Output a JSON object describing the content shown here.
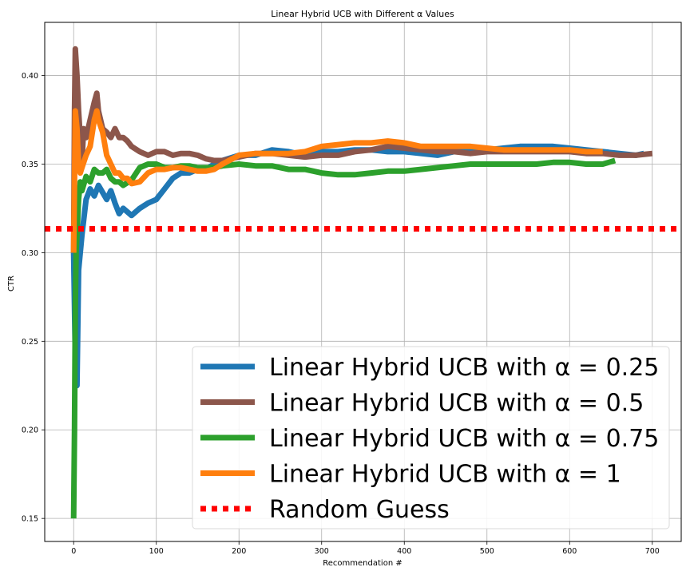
{
  "chart_data": {
    "type": "line",
    "title": "Linear Hybrid UCB with Different α Values",
    "xlabel": "Recommendation #",
    "ylabel": "CTR",
    "xlim": [
      -35,
      735
    ],
    "ylim": [
      0.137,
      0.43
    ],
    "xticks": [
      0,
      100,
      200,
      300,
      400,
      500,
      600,
      700
    ],
    "yticks": [
      0.15,
      0.2,
      0.25,
      0.3,
      0.35,
      0.4
    ],
    "ytick_labels": [
      "0.15",
      "0.20",
      "0.25",
      "0.30",
      "0.35",
      "0.40"
    ],
    "grid": true,
    "legend_position": "lower right",
    "series": [
      {
        "name": "Linear Hybrid UCB with α = 0.25",
        "color": "#1f77b4",
        "points": [
          [
            0,
            0.3
          ],
          [
            2,
            0.24
          ],
          [
            4,
            0.225
          ],
          [
            6,
            0.29
          ],
          [
            10,
            0.31
          ],
          [
            15,
            0.33
          ],
          [
            20,
            0.336
          ],
          [
            25,
            0.332
          ],
          [
            30,
            0.338
          ],
          [
            35,
            0.334
          ],
          [
            40,
            0.33
          ],
          [
            45,
            0.335
          ],
          [
            50,
            0.328
          ],
          [
            55,
            0.322
          ],
          [
            60,
            0.325
          ],
          [
            70,
            0.321
          ],
          [
            80,
            0.325
          ],
          [
            90,
            0.328
          ],
          [
            100,
            0.33
          ],
          [
            110,
            0.336
          ],
          [
            120,
            0.342
          ],
          [
            130,
            0.345
          ],
          [
            140,
            0.345
          ],
          [
            150,
            0.347
          ],
          [
            160,
            0.347
          ],
          [
            170,
            0.35
          ],
          [
            180,
            0.352
          ],
          [
            200,
            0.355
          ],
          [
            220,
            0.355
          ],
          [
            240,
            0.358
          ],
          [
            260,
            0.357
          ],
          [
            280,
            0.355
          ],
          [
            300,
            0.357
          ],
          [
            320,
            0.357
          ],
          [
            340,
            0.358
          ],
          [
            360,
            0.358
          ],
          [
            380,
            0.357
          ],
          [
            400,
            0.357
          ],
          [
            420,
            0.356
          ],
          [
            440,
            0.355
          ],
          [
            460,
            0.357
          ],
          [
            480,
            0.358
          ],
          [
            500,
            0.358
          ],
          [
            520,
            0.359
          ],
          [
            540,
            0.36
          ],
          [
            560,
            0.36
          ],
          [
            580,
            0.36
          ],
          [
            600,
            0.359
          ],
          [
            620,
            0.358
          ],
          [
            640,
            0.357
          ],
          [
            660,
            0.356
          ],
          [
            680,
            0.355
          ],
          [
            690,
            0.356
          ]
        ]
      },
      {
        "name": "Linear Hybrid UCB with α = 0.5",
        "color": "#8c564b",
        "points": [
          [
            0,
            0.3
          ],
          [
            1,
            0.38
          ],
          [
            2,
            0.415
          ],
          [
            4,
            0.4
          ],
          [
            6,
            0.38
          ],
          [
            8,
            0.365
          ],
          [
            10,
            0.35
          ],
          [
            12,
            0.37
          ],
          [
            15,
            0.365
          ],
          [
            20,
            0.375
          ],
          [
            25,
            0.385
          ],
          [
            28,
            0.39
          ],
          [
            30,
            0.38
          ],
          [
            35,
            0.37
          ],
          [
            40,
            0.368
          ],
          [
            45,
            0.365
          ],
          [
            50,
            0.37
          ],
          [
            55,
            0.365
          ],
          [
            60,
            0.365
          ],
          [
            65,
            0.363
          ],
          [
            70,
            0.36
          ],
          [
            80,
            0.357
          ],
          [
            90,
            0.355
          ],
          [
            100,
            0.357
          ],
          [
            110,
            0.357
          ],
          [
            120,
            0.355
          ],
          [
            130,
            0.356
          ],
          [
            140,
            0.356
          ],
          [
            150,
            0.355
          ],
          [
            160,
            0.353
          ],
          [
            170,
            0.352
          ],
          [
            180,
            0.352
          ],
          [
            200,
            0.354
          ],
          [
            220,
            0.356
          ],
          [
            240,
            0.356
          ],
          [
            260,
            0.355
          ],
          [
            280,
            0.354
          ],
          [
            300,
            0.355
          ],
          [
            320,
            0.355
          ],
          [
            340,
            0.357
          ],
          [
            360,
            0.358
          ],
          [
            380,
            0.36
          ],
          [
            400,
            0.359
          ],
          [
            420,
            0.358
          ],
          [
            440,
            0.357
          ],
          [
            460,
            0.357
          ],
          [
            480,
            0.356
          ],
          [
            500,
            0.357
          ],
          [
            520,
            0.357
          ],
          [
            540,
            0.357
          ],
          [
            560,
            0.357
          ],
          [
            580,
            0.357
          ],
          [
            600,
            0.357
          ],
          [
            620,
            0.356
          ],
          [
            640,
            0.356
          ],
          [
            660,
            0.355
          ],
          [
            680,
            0.355
          ],
          [
            700,
            0.356
          ]
        ]
      },
      {
        "name": "Linear Hybrid UCB with α = 0.75",
        "color": "#2ca02c",
        "points": [
          [
            0,
            0.15
          ],
          [
            1,
            0.2
          ],
          [
            2,
            0.27
          ],
          [
            3,
            0.3
          ],
          [
            4,
            0.31
          ],
          [
            6,
            0.33
          ],
          [
            8,
            0.34
          ],
          [
            10,
            0.335
          ],
          [
            15,
            0.343
          ],
          [
            20,
            0.34
          ],
          [
            25,
            0.347
          ],
          [
            30,
            0.345
          ],
          [
            35,
            0.345
          ],
          [
            40,
            0.347
          ],
          [
            45,
            0.342
          ],
          [
            50,
            0.34
          ],
          [
            55,
            0.34
          ],
          [
            60,
            0.338
          ],
          [
            70,
            0.341
          ],
          [
            80,
            0.348
          ],
          [
            90,
            0.35
          ],
          [
            100,
            0.35
          ],
          [
            110,
            0.348
          ],
          [
            120,
            0.348
          ],
          [
            130,
            0.349
          ],
          [
            140,
            0.349
          ],
          [
            150,
            0.348
          ],
          [
            160,
            0.348
          ],
          [
            170,
            0.348
          ],
          [
            180,
            0.349
          ],
          [
            200,
            0.35
          ],
          [
            220,
            0.349
          ],
          [
            240,
            0.349
          ],
          [
            260,
            0.347
          ],
          [
            280,
            0.347
          ],
          [
            300,
            0.345
          ],
          [
            320,
            0.344
          ],
          [
            340,
            0.344
          ],
          [
            360,
            0.345
          ],
          [
            380,
            0.346
          ],
          [
            400,
            0.346
          ],
          [
            420,
            0.347
          ],
          [
            440,
            0.348
          ],
          [
            460,
            0.349
          ],
          [
            480,
            0.35
          ],
          [
            500,
            0.35
          ],
          [
            520,
            0.35
          ],
          [
            540,
            0.35
          ],
          [
            560,
            0.35
          ],
          [
            580,
            0.351
          ],
          [
            600,
            0.351
          ],
          [
            620,
            0.35
          ],
          [
            640,
            0.35
          ],
          [
            655,
            0.352
          ]
        ]
      },
      {
        "name": "Linear Hybrid UCB with α = 1",
        "color": "#ff7f0e",
        "points": [
          [
            0,
            0.3
          ],
          [
            1,
            0.34
          ],
          [
            2,
            0.38
          ],
          [
            4,
            0.37
          ],
          [
            6,
            0.35
          ],
          [
            8,
            0.345
          ],
          [
            10,
            0.348
          ],
          [
            15,
            0.355
          ],
          [
            20,
            0.36
          ],
          [
            25,
            0.375
          ],
          [
            28,
            0.38
          ],
          [
            30,
            0.375
          ],
          [
            35,
            0.368
          ],
          [
            40,
            0.355
          ],
          [
            45,
            0.35
          ],
          [
            50,
            0.345
          ],
          [
            55,
            0.345
          ],
          [
            60,
            0.342
          ],
          [
            65,
            0.342
          ],
          [
            70,
            0.339
          ],
          [
            80,
            0.34
          ],
          [
            90,
            0.345
          ],
          [
            100,
            0.347
          ],
          [
            110,
            0.347
          ],
          [
            120,
            0.348
          ],
          [
            130,
            0.348
          ],
          [
            140,
            0.347
          ],
          [
            150,
            0.346
          ],
          [
            160,
            0.346
          ],
          [
            170,
            0.347
          ],
          [
            180,
            0.35
          ],
          [
            200,
            0.355
          ],
          [
            220,
            0.356
          ],
          [
            240,
            0.356
          ],
          [
            260,
            0.356
          ],
          [
            280,
            0.357
          ],
          [
            300,
            0.36
          ],
          [
            320,
            0.361
          ],
          [
            340,
            0.362
          ],
          [
            360,
            0.362
          ],
          [
            380,
            0.363
          ],
          [
            400,
            0.362
          ],
          [
            420,
            0.36
          ],
          [
            440,
            0.36
          ],
          [
            460,
            0.36
          ],
          [
            480,
            0.36
          ],
          [
            500,
            0.359
          ],
          [
            520,
            0.358
          ],
          [
            540,
            0.358
          ],
          [
            560,
            0.358
          ],
          [
            580,
            0.358
          ],
          [
            600,
            0.358
          ],
          [
            620,
            0.357
          ],
          [
            640,
            0.357
          ]
        ]
      },
      {
        "name": "Random Guess",
        "color": "#ff0000",
        "dashed": true,
        "y": 0.3135
      }
    ]
  }
}
